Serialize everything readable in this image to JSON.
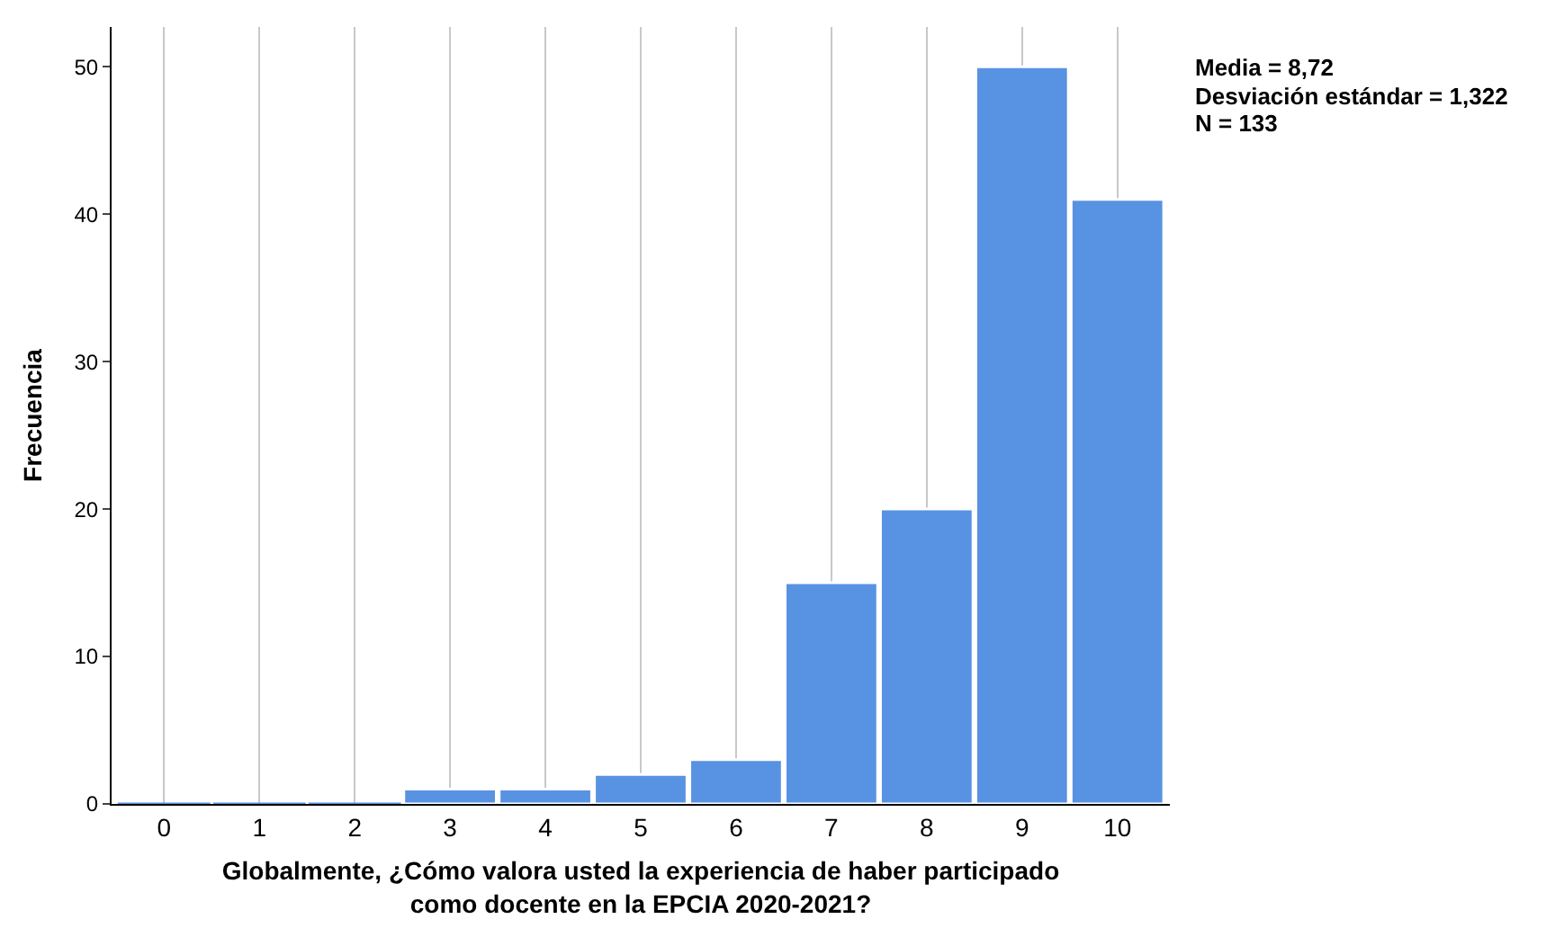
{
  "chart_data": {
    "type": "bar",
    "categories": [
      "0",
      "1",
      "2",
      "3",
      "4",
      "5",
      "6",
      "7",
      "8",
      "9",
      "10"
    ],
    "values": [
      0,
      0,
      0,
      1,
      1,
      2,
      3,
      15,
      20,
      50,
      41
    ],
    "color": "#5892e3",
    "xlabel": "Globalmente, ¿Cómo valora usted la experiencia de haber participado\ncomo docente en la EPCIA 2020-2021?",
    "ylabel": "Frecuencia",
    "ylim": [
      0,
      52.7
    ],
    "yticks": [
      0,
      10,
      20,
      30,
      40,
      50
    ],
    "grid": "x",
    "annotations": [
      "Media = 8,72",
      "Desviación estándar = 1,322",
      "N = 133"
    ]
  }
}
